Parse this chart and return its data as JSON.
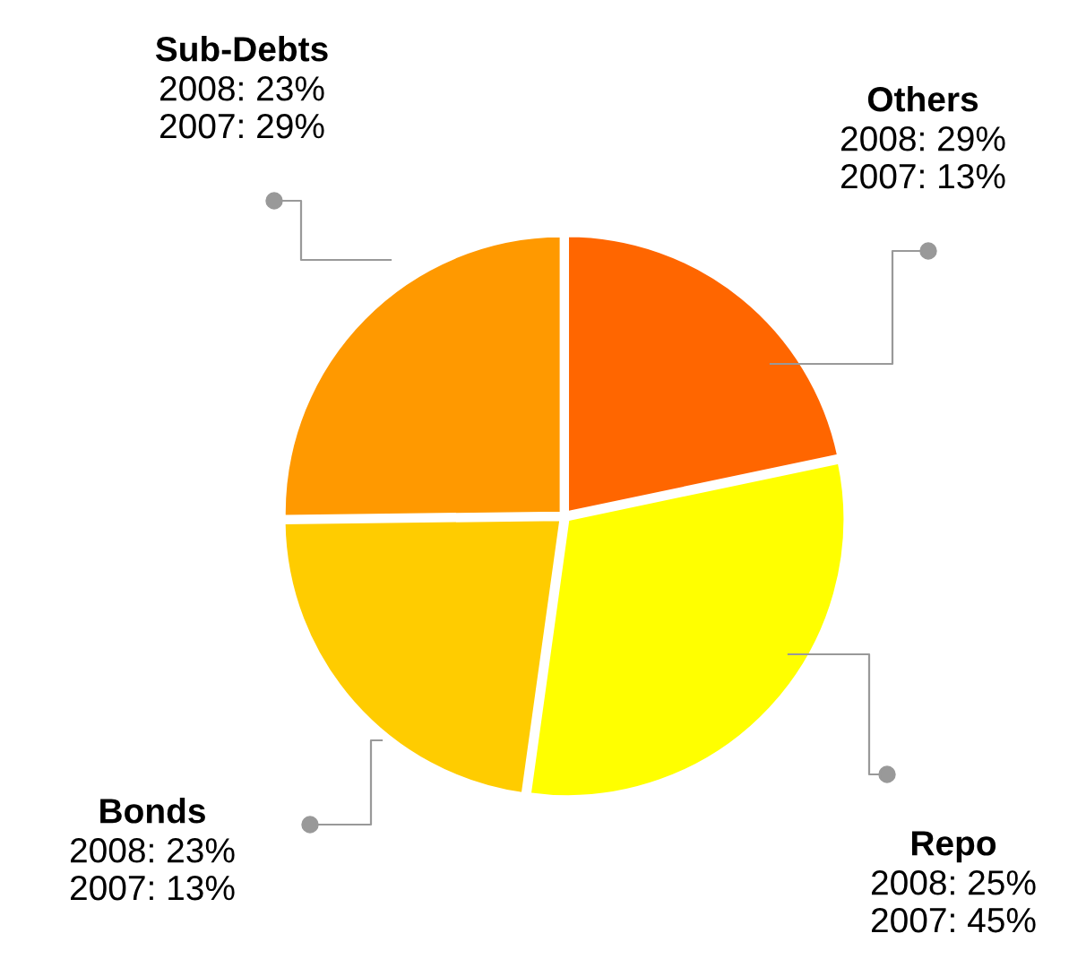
{
  "chart_data": {
    "type": "pie",
    "categories": [
      "Others",
      "Repo",
      "Bonds",
      "Sub-Debts"
    ],
    "values": [
      21.7,
      30.5,
      22.6,
      25.2
    ],
    "colors": [
      "#ff6600",
      "#ffff00",
      "#ffcc00",
      "#ff9900"
    ],
    "annotations": [
      "2008: 29%\n2007: 13%",
      "2008: 25%\n2007: 45%",
      "2008: 23%\n2007: 13%",
      "2008: 23%\n2007: 29%"
    ],
    "legend": false
  }
}
